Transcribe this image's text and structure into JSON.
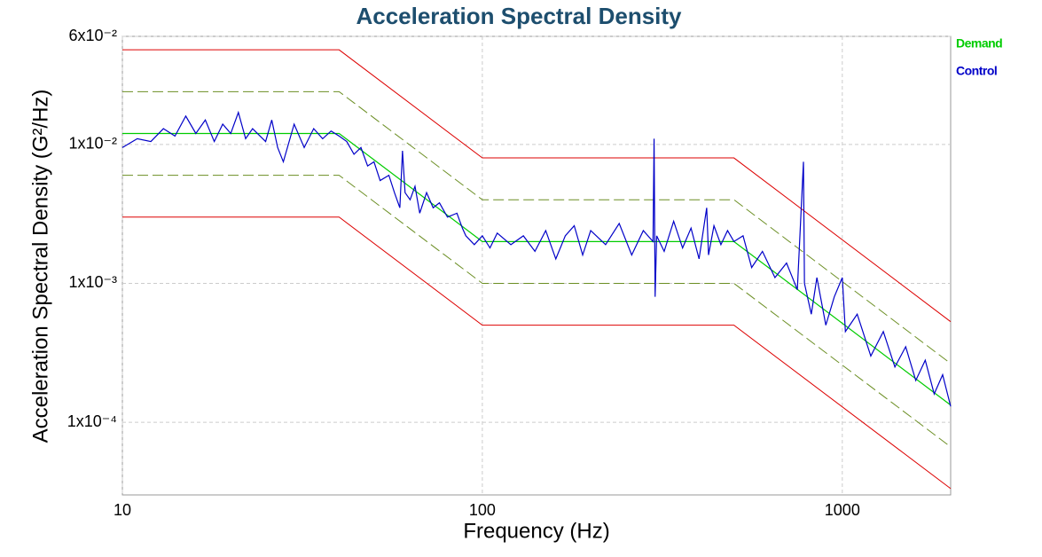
{
  "chart_data": {
    "type": "line",
    "title": "Acceleration Spectral Density",
    "x_label": "Frequency (Hz)",
    "y_label": "Acceleration Spectral Density (G²/Hz)",
    "log_x": true,
    "log_y": true,
    "grid": true,
    "legend": "right",
    "xlim": [
      10,
      2000
    ],
    "xticks": [
      10,
      100,
      1000
    ],
    "ylim": [
      3e-05,
      0.06
    ],
    "yticks": [
      {
        "value": 0.06,
        "label": "6x10⁻²"
      },
      {
        "value": 0.01,
        "label": "1x10⁻²"
      },
      {
        "value": 0.001,
        "label": "1x10⁻³"
      },
      {
        "value": 0.0001,
        "label": "1x10⁻⁴"
      }
    ],
    "series": [
      {
        "name": "Demand",
        "color": "#00cc00",
        "x": [
          10,
          40,
          100,
          500,
          2000
        ],
        "values": [
          0.012,
          0.012,
          0.002,
          0.002,
          0.000133
        ]
      },
      {
        "name": "Control",
        "color": "#0000c8",
        "x": [
          10,
          11,
          12,
          13,
          14,
          15,
          16,
          17,
          18,
          19,
          20,
          21,
          22,
          23,
          25,
          26,
          27,
          28,
          30,
          32,
          34,
          36,
          38,
          40,
          42,
          44,
          46,
          48,
          50,
          52,
          55,
          57,
          59,
          60,
          61,
          63,
          65,
          67,
          70,
          73,
          76,
          80,
          85,
          88,
          90,
          95,
          100,
          105,
          110,
          120,
          130,
          140,
          150,
          160,
          170,
          180,
          190,
          200,
          220,
          240,
          260,
          280,
          298,
          300,
          302,
          305,
          320,
          340,
          360,
          380,
          400,
          420,
          425,
          440,
          460,
          480,
          500,
          530,
          560,
          600,
          650,
          700,
          750,
          780,
          785,
          820,
          850,
          900,
          950,
          1000,
          1020,
          1100,
          1200,
          1300,
          1400,
          1500,
          1600,
          1700,
          1800,
          1900,
          2000
        ],
        "values": [
          0.0095,
          0.011,
          0.0105,
          0.013,
          0.0115,
          0.016,
          0.012,
          0.015,
          0.0105,
          0.014,
          0.012,
          0.017,
          0.011,
          0.013,
          0.0105,
          0.015,
          0.0095,
          0.0075,
          0.014,
          0.0095,
          0.013,
          0.011,
          0.0125,
          0.0115,
          0.0105,
          0.0085,
          0.0095,
          0.007,
          0.0075,
          0.0055,
          0.006,
          0.0045,
          0.0035,
          0.009,
          0.0045,
          0.004,
          0.005,
          0.0032,
          0.0045,
          0.0035,
          0.0038,
          0.003,
          0.0032,
          0.0025,
          0.0022,
          0.0019,
          0.0022,
          0.0018,
          0.0023,
          0.0019,
          0.0022,
          0.0017,
          0.0024,
          0.0015,
          0.0022,
          0.0026,
          0.0016,
          0.0024,
          0.0019,
          0.0027,
          0.0016,
          0.0024,
          0.002,
          0.011,
          0.0008,
          0.0022,
          0.0017,
          0.0028,
          0.0018,
          0.0025,
          0.0015,
          0.0035,
          0.0016,
          0.0026,
          0.0019,
          0.0024,
          0.002,
          0.0022,
          0.0013,
          0.0017,
          0.0011,
          0.0014,
          0.0009,
          0.0075,
          0.001,
          0.0006,
          0.0011,
          0.0005,
          0.0008,
          0.0011,
          0.00045,
          0.0006,
          0.0003,
          0.00045,
          0.00025,
          0.00035,
          0.0002,
          0.00028,
          0.00016,
          0.00022,
          0.00013
        ]
      }
    ],
    "limits": [
      {
        "color": "#dd0000",
        "dash": false,
        "x": [
          10,
          40,
          100,
          500,
          2000
        ],
        "values": [
          0.048,
          0.048,
          0.008,
          0.008,
          0.00053
        ]
      },
      {
        "color": "#6b8e23",
        "dash": true,
        "x": [
          10,
          40,
          100,
          500,
          2000
        ],
        "values": [
          0.024,
          0.024,
          0.004,
          0.004,
          0.000265
        ]
      },
      {
        "color": "#6b8e23",
        "dash": true,
        "x": [
          10,
          40,
          100,
          500,
          2000
        ],
        "values": [
          0.006,
          0.006,
          0.001,
          0.001,
          6.65e-05
        ]
      },
      {
        "color": "#dd0000",
        "dash": false,
        "x": [
          10,
          40,
          100,
          500,
          2000
        ],
        "values": [
          0.003,
          0.003,
          0.0005,
          0.0005,
          3.33e-05
        ]
      }
    ]
  }
}
